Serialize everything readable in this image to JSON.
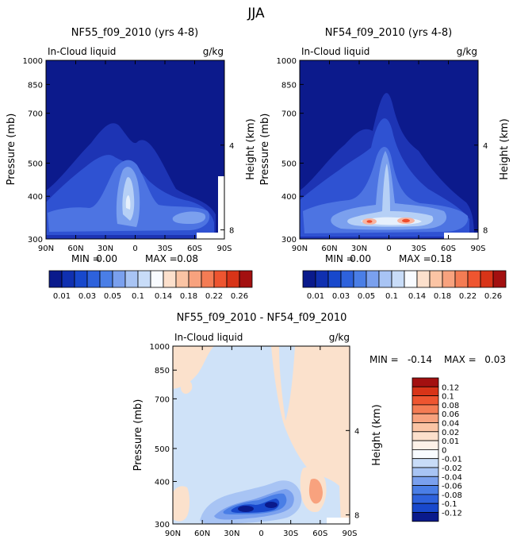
{
  "page": {
    "title": "JJA"
  },
  "colors": {
    "c_m12": "#0a1a8c",
    "c_m10": "#1030b0",
    "c_m08": "#1848cc",
    "c_m06": "#2e62dc",
    "c_m04": "#4a7ee6",
    "c_m02": "#7aa0ee",
    "c_m01": "#a8c4f4",
    "c_m005": "#c8dcf8",
    "c_zero": "#f8fbff",
    "c_p01": "#fce0cc",
    "c_p02": "#fbc4a4",
    "c_p04": "#f8a27e",
    "c_p06": "#f47c54",
    "c_p08": "#ee5530",
    "c_p10": "#d83418",
    "c_p12": "#a31010",
    "abs_bg": "#0c1a8c",
    "abs_1": "#1d34b4",
    "abs_2": "#2f52d2",
    "abs_3": "#4d74e2",
    "abs_4": "#7ba0ee",
    "abs_5": "#b6d0f6",
    "abs_6": "#e6f0fc",
    "abs_hot1": "#f8b4a0",
    "abs_hot2": "#ee4c2c",
    "diff_bg": "#fbe1cc",
    "diff_neg1": "#cfe2f8"
  },
  "chart_data": [
    {
      "id": "panel_nf55",
      "type": "heatmap",
      "title": "NF55_f09_2010 (yrs 4-8)",
      "left_label": "In-Cloud liquid",
      "units": "g/kg",
      "xlabel": "",
      "ylabel": "Pressure (mb)",
      "y2label": "Height (km)",
      "x_ticks": [
        "90N",
        "60N",
        "30N",
        "0",
        "30S",
        "60S",
        "90S"
      ],
      "y_ticks": [
        300,
        400,
        500,
        700,
        850,
        1000
      ],
      "y2_ticks": [
        8,
        4
      ],
      "ylim": [
        1000,
        300
      ],
      "min_label": "MIN =",
      "min_value": "0.00",
      "max_label": "MAX =",
      "max_value": "0.08",
      "colorbar": {
        "orientation": "horizontal",
        "labels": [
          "0.01",
          "0.03",
          "0.05",
          "0.1",
          "0.14",
          "0.18",
          "0.22",
          "0.26"
        ],
        "box_colors": [
          "#0a1a8c",
          "#1030b0",
          "#1848cc",
          "#2e62dc",
          "#4a7ee6",
          "#7aa0ee",
          "#a8c4f4",
          "#c8dcf8",
          "#f8fbff",
          "#fce0cc",
          "#fbc4a4",
          "#f8a27e",
          "#f47c54",
          "#ee5530",
          "#d83418",
          "#a31010"
        ]
      }
    },
    {
      "id": "panel_nf54",
      "type": "heatmap",
      "title": "NF54_f09_2010 (yrs 4-8)",
      "left_label": "In-Cloud liquid",
      "units": "g/kg",
      "xlabel": "",
      "ylabel": "Pressure (mb)",
      "y2label": "Height (km)",
      "x_ticks": [
        "90N",
        "60N",
        "30N",
        "0",
        "30S",
        "60S",
        "90S"
      ],
      "y_ticks": [
        300,
        400,
        500,
        700,
        850,
        1000
      ],
      "y2_ticks": [
        8,
        4
      ],
      "ylim": [
        1000,
        300
      ],
      "min_label": "MIN =",
      "min_value": "0.00",
      "max_label": "MAX =",
      "max_value": "0.18",
      "colorbar": {
        "orientation": "horizontal",
        "labels": [
          "0.01",
          "0.03",
          "0.05",
          "0.1",
          "0.14",
          "0.18",
          "0.22",
          "0.26"
        ],
        "box_colors": [
          "#0a1a8c",
          "#1030b0",
          "#1848cc",
          "#2e62dc",
          "#4a7ee6",
          "#7aa0ee",
          "#a8c4f4",
          "#c8dcf8",
          "#f8fbff",
          "#fce0cc",
          "#fbc4a4",
          "#f8a27e",
          "#f47c54",
          "#ee5530",
          "#d83418",
          "#a31010"
        ]
      }
    },
    {
      "id": "panel_diff",
      "type": "heatmap",
      "title": "NF55_f09_2010 - NF54_f09_2010",
      "left_label": "In-Cloud liquid",
      "units": "g/kg",
      "xlabel": "",
      "ylabel": "Pressure (mb)",
      "y2label": "Height (km)",
      "x_ticks": [
        "90N",
        "60N",
        "30N",
        "0",
        "30S",
        "60S",
        "90S"
      ],
      "y_ticks": [
        300,
        400,
        500,
        700,
        850,
        1000
      ],
      "y2_ticks": [
        8,
        4
      ],
      "ylim": [
        1000,
        300
      ],
      "min_label": "MIN =",
      "min_value": "-0.14",
      "max_label": "MAX =",
      "max_value": "0.03",
      "colorbar": {
        "orientation": "vertical",
        "labels": [
          "0.12",
          "0.1",
          "0.08",
          "0.06",
          "0.04",
          "0.02",
          "0.01",
          "0",
          "-0.01",
          "-0.02",
          "-0.04",
          "-0.06",
          "-0.08",
          "-0.1",
          "-0.12"
        ],
        "box_colors": [
          "#a31010",
          "#d83418",
          "#ee5530",
          "#f47c54",
          "#f8a27e",
          "#fbc4a4",
          "#fce0cc",
          "#fdf1e8",
          "#f8fbff",
          "#c8dcf8",
          "#a8c4f4",
          "#7aa0ee",
          "#4a7ee6",
          "#2e62dc",
          "#1848cc",
          "#0a1a8c"
        ]
      }
    }
  ]
}
